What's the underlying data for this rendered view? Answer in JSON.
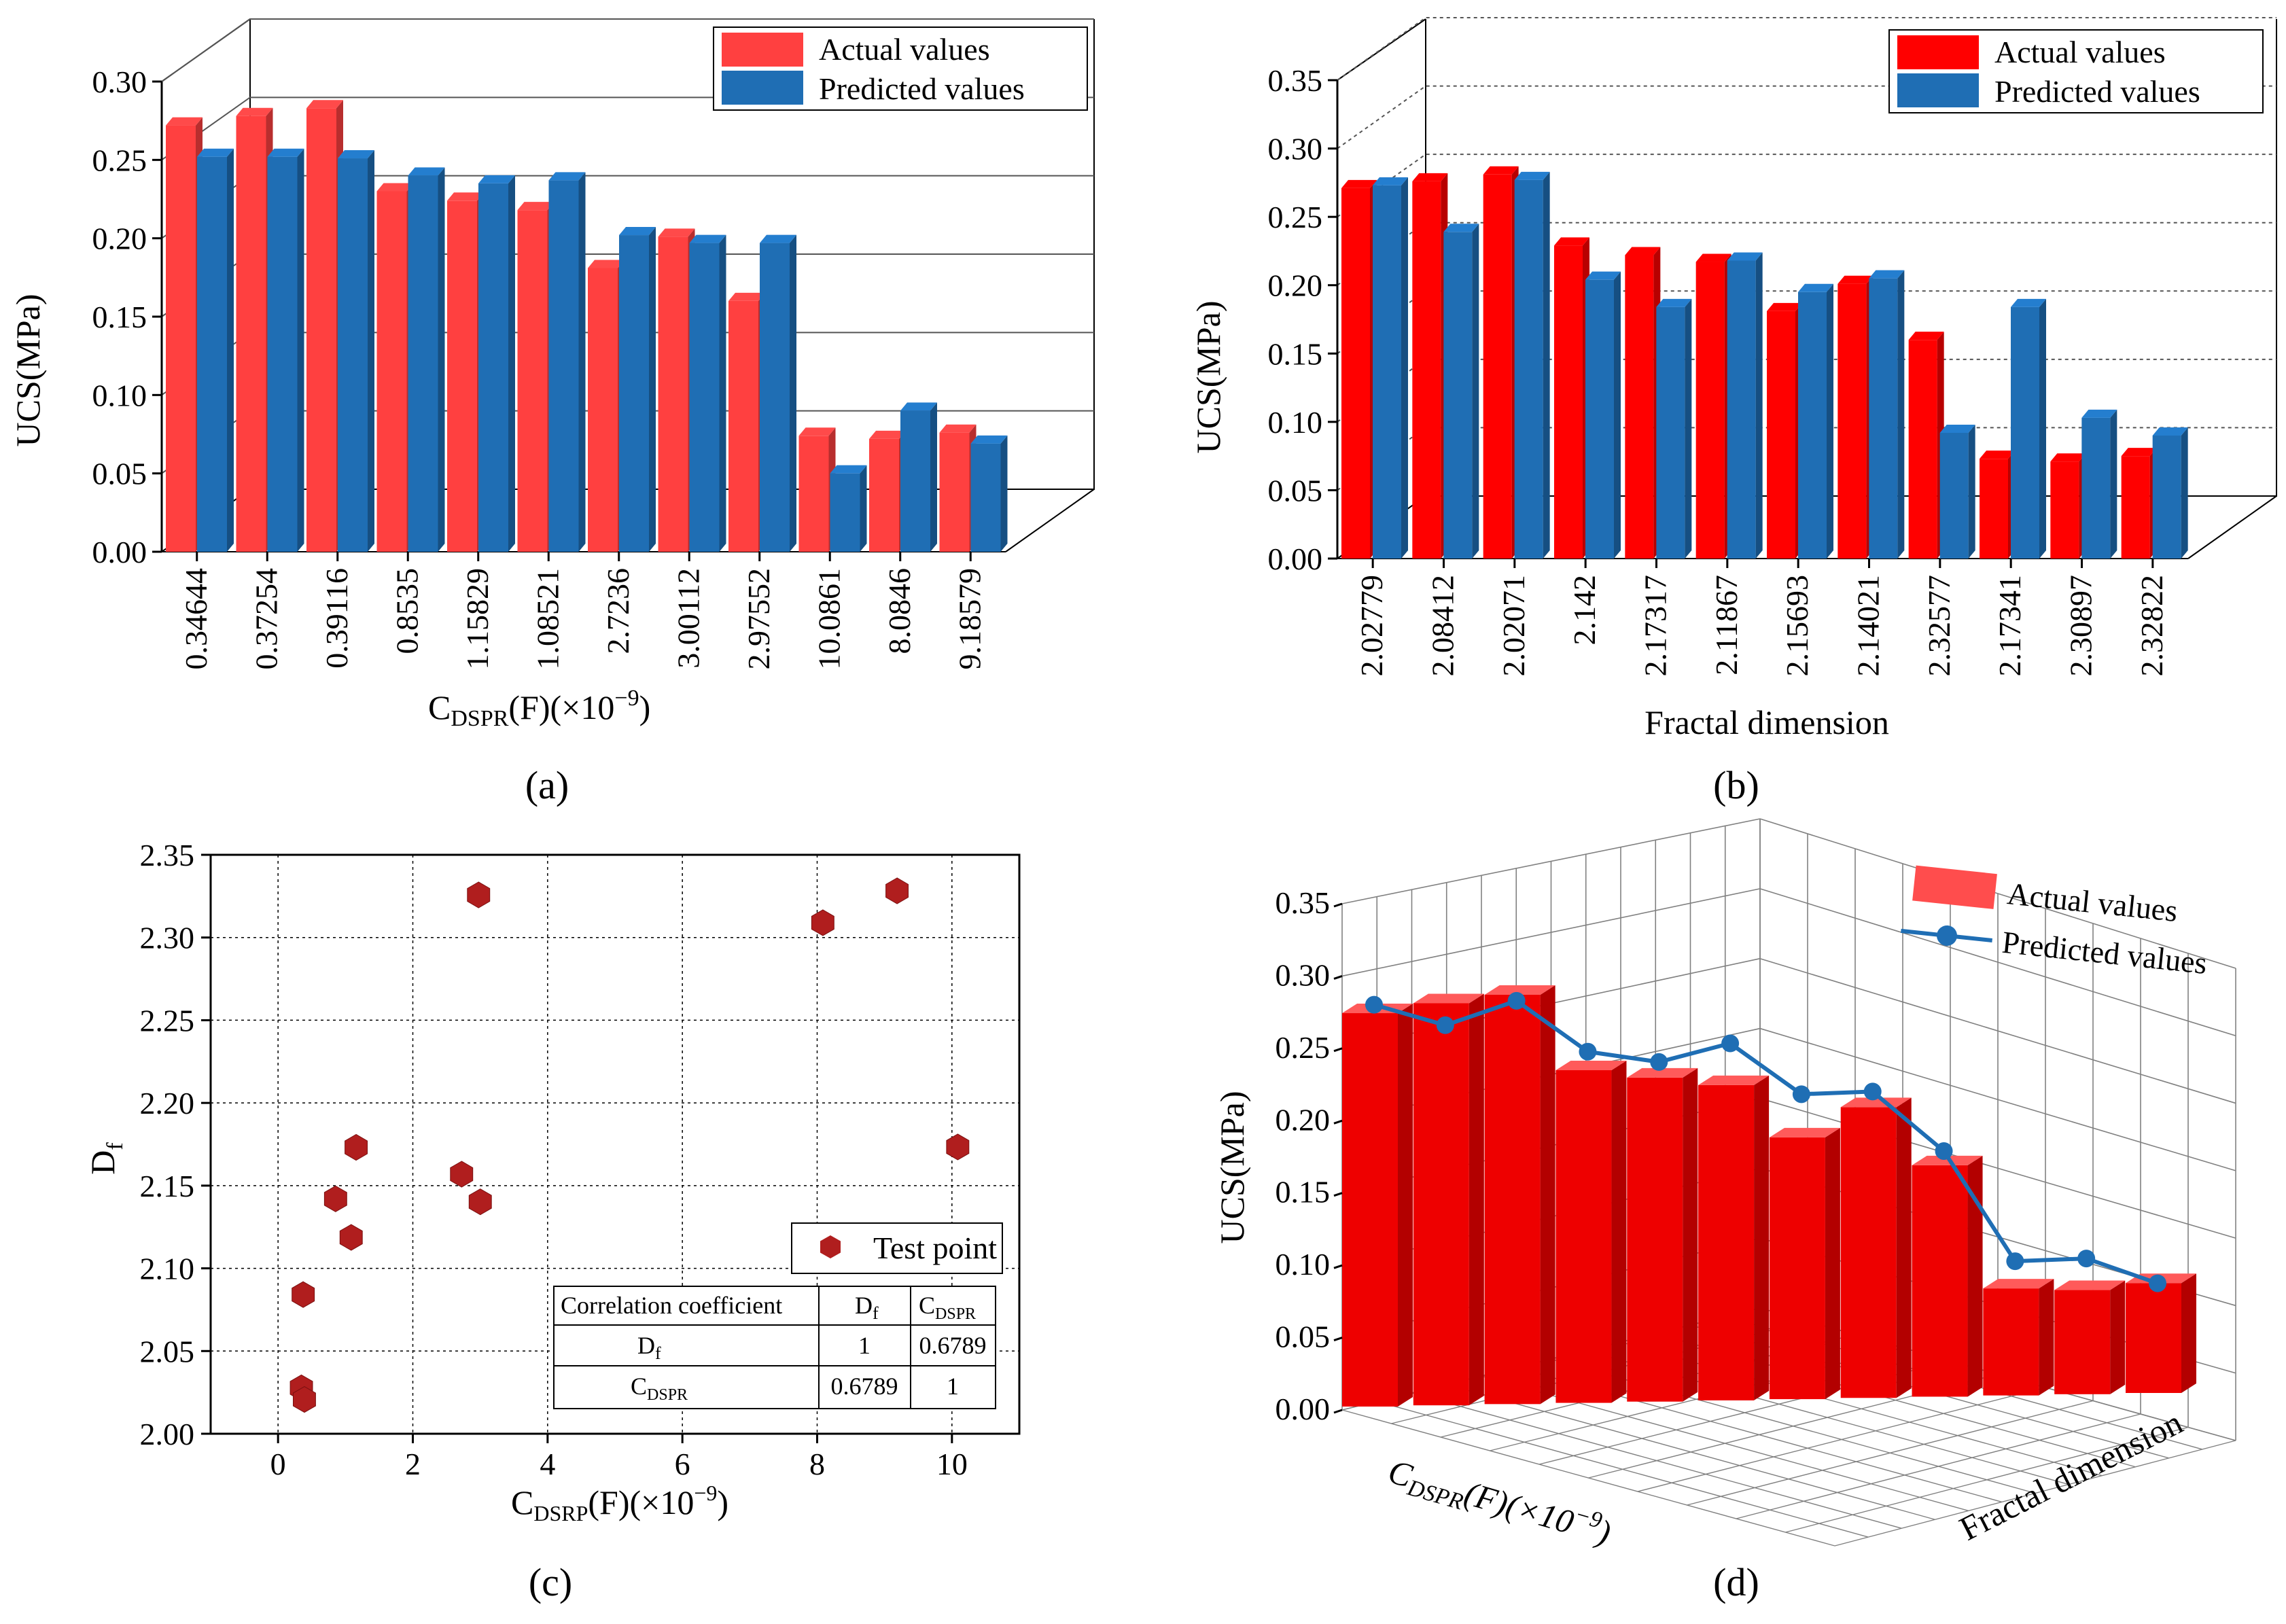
{
  "panels": {
    "a": {
      "caption": "(a)"
    },
    "b": {
      "caption": "(b)"
    },
    "c": {
      "caption": "(c)"
    },
    "d": {
      "caption": "(d)"
    }
  },
  "colors": {
    "actual_a": "#ff4040",
    "actual_b": "#ff0000",
    "predicted": "#1f6eb4",
    "scatter": "#b01e1e",
    "grid": "#808080"
  },
  "chart_data": [
    {
      "id": "a",
      "type": "bar",
      "title": "",
      "xlabel_main": "C",
      "xlabel_sub": "DSPR",
      "xlabel_rest": "(F)(×10",
      "xlabel_sup": "−9",
      "xlabel_end": ")",
      "ylabel": "UCS(MPa)",
      "ylim": [
        0,
        0.3
      ],
      "yticks": [
        "0.00",
        "0.05",
        "0.10",
        "0.15",
        "0.20",
        "0.25",
        "0.30"
      ],
      "categories": [
        "0.34644",
        "0.37254",
        "0.39116",
        "0.8535",
        "1.15829",
        "1.08521",
        "2.7236",
        "3.00112",
        "2.97552",
        "10.0861",
        "8.0846",
        "9.18579"
      ],
      "series": [
        {
          "name": "Actual values",
          "values": [
            0.272,
            0.278,
            0.283,
            0.23,
            0.224,
            0.218,
            0.181,
            0.201,
            0.16,
            0.074,
            0.072,
            0.076
          ]
        },
        {
          "name": "Predicted values",
          "values": [
            0.252,
            0.252,
            0.251,
            0.24,
            0.235,
            0.237,
            0.202,
            0.197,
            0.197,
            0.05,
            0.09,
            0.069
          ]
        }
      ],
      "legend_position": "top-right"
    },
    {
      "id": "b",
      "type": "bar",
      "title": "",
      "xlabel": "Fractal dimension",
      "ylabel": "UCS(MPa)",
      "ylim": [
        0,
        0.35
      ],
      "yticks": [
        "0.00",
        "0.05",
        "0.10",
        "0.15",
        "0.20",
        "0.25",
        "0.30",
        "0.35"
      ],
      "categories": [
        "2.02779",
        "2.08412",
        "2.02071",
        "2.142",
        "2.17317",
        "2.11867",
        "2.15693",
        "2.14021",
        "2.32577",
        "2.17341",
        "2.30897",
        "2.32822"
      ],
      "series": [
        {
          "name": "Actual values",
          "values": [
            0.271,
            0.276,
            0.281,
            0.229,
            0.222,
            0.217,
            0.181,
            0.201,
            0.16,
            0.073,
            0.071,
            0.075
          ]
        },
        {
          "name": "Predicted values",
          "values": [
            0.273,
            0.239,
            0.277,
            0.204,
            0.184,
            0.218,
            0.195,
            0.205,
            0.092,
            0.184,
            0.103,
            0.09
          ]
        }
      ],
      "legend_position": "top-right"
    },
    {
      "id": "c",
      "type": "scatter",
      "title": "",
      "xlabel_main": "C",
      "xlabel_sub": "DSRP",
      "xlabel_rest": "(F)(×10",
      "xlabel_sup": "−9",
      "xlabel_end": ")",
      "ylabel_main": "D",
      "ylabel_sub": "f",
      "xlim": [
        -1,
        11
      ],
      "ylim": [
        2.0,
        2.35
      ],
      "xticks": [
        0,
        2,
        4,
        6,
        8,
        10
      ],
      "yticks": [
        "2.00",
        "2.05",
        "2.10",
        "2.15",
        "2.20",
        "2.25",
        "2.30",
        "2.35"
      ],
      "xtick_labels": [
        "0",
        "2",
        "4",
        "6",
        "8",
        "10"
      ],
      "points": [
        {
          "x": 0.34644,
          "y": 2.02779
        },
        {
          "x": 0.37254,
          "y": 2.08412
        },
        {
          "x": 0.39116,
          "y": 2.02071
        },
        {
          "x": 0.8535,
          "y": 2.142
        },
        {
          "x": 1.15829,
          "y": 2.17317
        },
        {
          "x": 1.08521,
          "y": 2.11867
        },
        {
          "x": 2.7236,
          "y": 2.15693
        },
        {
          "x": 3.00112,
          "y": 2.14021
        },
        {
          "x": 2.97552,
          "y": 2.32577
        },
        {
          "x": 10.0861,
          "y": 2.17341
        },
        {
          "x": 8.0846,
          "y": 2.30897
        },
        {
          "x": 9.18579,
          "y": 2.32822
        }
      ],
      "legend": "Test point",
      "corr_table": {
        "header": [
          "Correlation coefficient",
          "D",
          "f",
          "C",
          "DSPR"
        ],
        "row1": {
          "label_main": "D",
          "label_sub": "f",
          "v1": "1",
          "v2": "0.6789"
        },
        "row2": {
          "label_main": "C",
          "label_sub": "DSPR",
          "v1": "0.6789",
          "v2": "1"
        }
      }
    },
    {
      "id": "d",
      "type": "bar",
      "title": "",
      "ylabel": "UCS(MPa)",
      "xlabel_main": "C",
      "xlabel_sub": "DSPR",
      "xlabel_rest": "(F)(×10",
      "xlabel_sup": "−9",
      "xlabel_end": ")",
      "zlabel": "Fractal dimension",
      "ylim": [
        0,
        0.35
      ],
      "yticks": [
        "0.00",
        "0.05",
        "0.10",
        "0.15",
        "0.20",
        "0.25",
        "0.30",
        "0.35"
      ],
      "series": [
        {
          "name": "Actual values",
          "values": [
            0.272,
            0.278,
            0.283,
            0.23,
            0.224,
            0.218,
            0.181,
            0.201,
            0.16,
            0.074,
            0.072,
            0.076
          ]
        },
        {
          "name": "Predicted values",
          "values": [
            0.275,
            0.26,
            0.276,
            0.24,
            0.232,
            0.244,
            0.208,
            0.209,
            0.167,
            0.09,
            0.091,
            0.073
          ]
        }
      ],
      "legend_position": "top-right"
    }
  ]
}
